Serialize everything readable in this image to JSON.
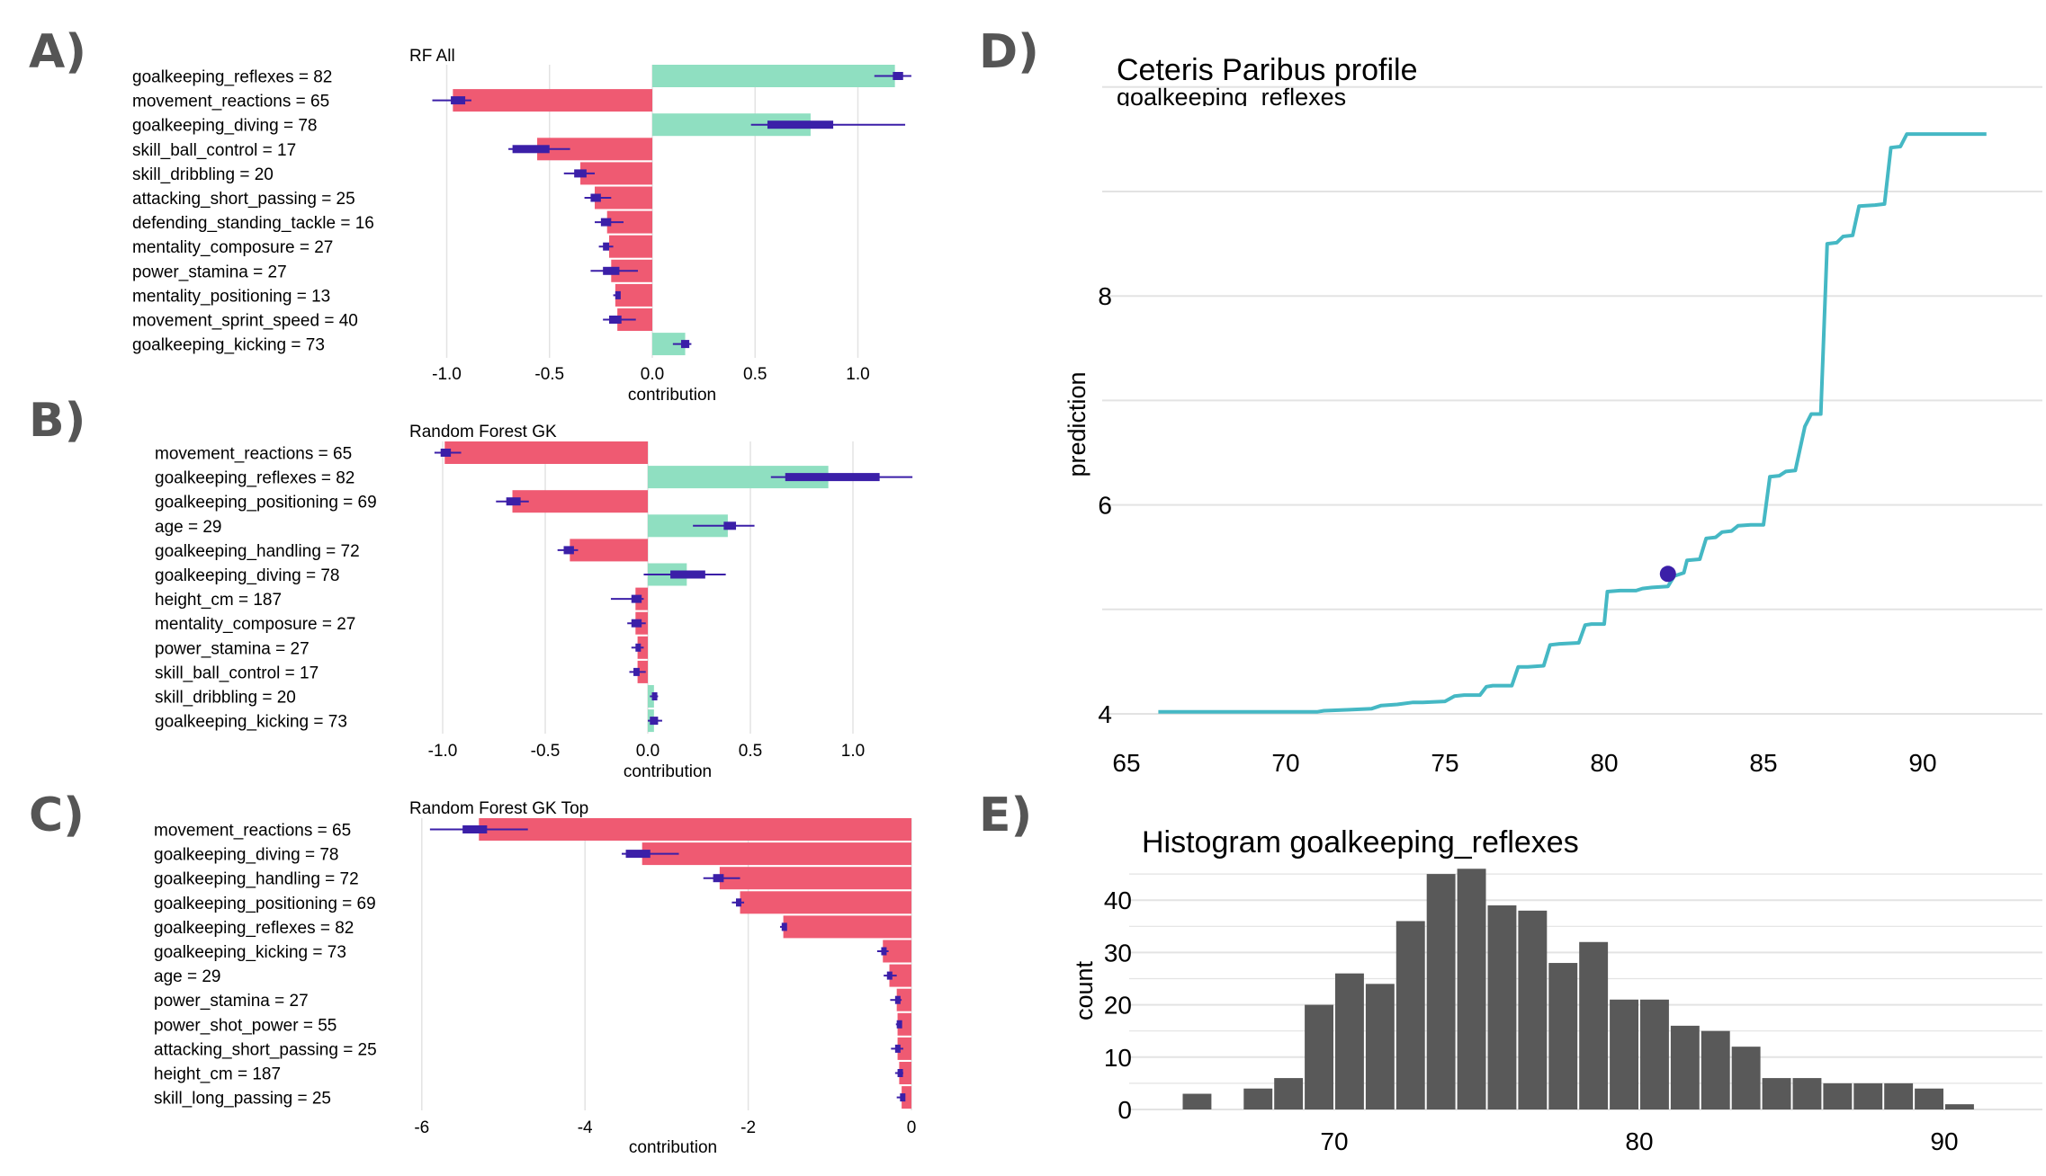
{
  "panel_letters": [
    "A)",
    "B)",
    "C)",
    "D)",
    "E)"
  ],
  "colors": {
    "positive": "#8fdfc1",
    "negative": "#ef5a72",
    "point": "#3b1fa8",
    "line": "#45b8c4",
    "hist": "#595959",
    "grid": "#e3e3e3"
  },
  "chart_data": [
    {
      "id": "A",
      "type": "bar",
      "title": "RF All",
      "xlabel": "contribution",
      "xlim": [
        -1.1,
        1.25
      ],
      "xticks": [
        -1.0,
        -0.5,
        0.0,
        0.5,
        1.0
      ],
      "xtick_labels": [
        "-1.0",
        "-0.5",
        "0.0",
        "0.5",
        "1.0"
      ],
      "features": [
        {
          "label": "goalkeeping_reflexes = 82",
          "value": 1.18,
          "q1": 1.17,
          "q3": 1.22,
          "lo": 1.08,
          "hi": 1.26
        },
        {
          "label": "movement_reactions = 65",
          "value": -0.97,
          "q1": -0.98,
          "q3": -0.91,
          "lo": -1.07,
          "hi": -0.88
        },
        {
          "label": "goalkeeping_diving = 78",
          "value": 0.77,
          "q1": 0.56,
          "q3": 0.88,
          "lo": 0.48,
          "hi": 1.23
        },
        {
          "label": "skill_ball_control = 17",
          "value": -0.56,
          "q1": -0.68,
          "q3": -0.5,
          "lo": -0.7,
          "hi": -0.4
        },
        {
          "label": "skill_dribbling = 20",
          "value": -0.35,
          "q1": -0.38,
          "q3": -0.32,
          "lo": -0.43,
          "hi": -0.28
        },
        {
          "label": "attacking_short_passing = 25",
          "value": -0.28,
          "q1": -0.3,
          "q3": -0.25,
          "lo": -0.33,
          "hi": -0.2
        },
        {
          "label": "defending_standing_tackle = 16",
          "value": -0.22,
          "q1": -0.25,
          "q3": -0.2,
          "lo": -0.28,
          "hi": -0.14
        },
        {
          "label": "mentality_composure = 27",
          "value": -0.21,
          "q1": -0.24,
          "q3": -0.21,
          "lo": -0.26,
          "hi": -0.19
        },
        {
          "label": "power_stamina = 27",
          "value": -0.2,
          "q1": -0.24,
          "q3": -0.16,
          "lo": -0.3,
          "hi": -0.07
        },
        {
          "label": "mentality_positioning = 13",
          "value": -0.18,
          "q1": -0.18,
          "q3": -0.17,
          "lo": -0.19,
          "hi": -0.16
        },
        {
          "label": "movement_sprint_speed = 40",
          "value": -0.17,
          "q1": -0.21,
          "q3": -0.15,
          "lo": -0.24,
          "hi": -0.08
        },
        {
          "label": "goalkeeping_kicking = 73",
          "value": 0.16,
          "q1": 0.14,
          "q3": 0.18,
          "lo": 0.1,
          "hi": 0.19
        }
      ]
    },
    {
      "id": "B",
      "type": "bar",
      "title": "Random Forest GK",
      "xlabel": "contribution",
      "xlim": [
        -1.1,
        1.28
      ],
      "xticks": [
        -1.0,
        -0.5,
        0.0,
        0.5,
        1.0
      ],
      "xtick_labels": [
        "-1.0",
        "-0.5",
        "0.0",
        "0.5",
        "1.0"
      ],
      "features": [
        {
          "label": "movement_reactions = 65",
          "value": -0.99,
          "q1": -1.01,
          "q3": -0.96,
          "lo": -1.04,
          "hi": -0.91
        },
        {
          "label": "goalkeeping_reflexes = 82",
          "value": 0.88,
          "q1": 0.67,
          "q3": 1.13,
          "lo": 0.6,
          "hi": 1.29
        },
        {
          "label": "goalkeeping_positioning = 69",
          "value": -0.66,
          "q1": -0.69,
          "q3": -0.62,
          "lo": -0.74,
          "hi": -0.58
        },
        {
          "label": "age = 29",
          "value": 0.39,
          "q1": 0.37,
          "q3": 0.43,
          "lo": 0.22,
          "hi": 0.52
        },
        {
          "label": "goalkeeping_handling = 72",
          "value": -0.38,
          "q1": -0.41,
          "q3": -0.36,
          "lo": -0.44,
          "hi": -0.34
        },
        {
          "label": "goalkeeping_diving = 78",
          "value": 0.19,
          "q1": 0.11,
          "q3": 0.28,
          "lo": -0.02,
          "hi": 0.38
        },
        {
          "label": "height_cm = 187",
          "value": -0.06,
          "q1": -0.08,
          "q3": -0.03,
          "lo": -0.18,
          "hi": -0.02
        },
        {
          "label": "mentality_composure = 27",
          "value": -0.06,
          "q1": -0.08,
          "q3": -0.03,
          "lo": -0.1,
          "hi": -0.01
        },
        {
          "label": "power_stamina = 27",
          "value": -0.05,
          "q1": -0.06,
          "q3": -0.04,
          "lo": -0.08,
          "hi": -0.02
        },
        {
          "label": "skill_ball_control = 17",
          "value": -0.05,
          "q1": -0.07,
          "q3": -0.04,
          "lo": -0.09,
          "hi": -0.01
        },
        {
          "label": "skill_dribbling = 20",
          "value": 0.03,
          "q1": 0.02,
          "q3": 0.04,
          "lo": 0.01,
          "hi": 0.05
        },
        {
          "label": "goalkeeping_kicking = 73",
          "value": 0.03,
          "q1": 0.01,
          "q3": 0.05,
          "lo": 0.0,
          "hi": 0.07
        }
      ]
    },
    {
      "id": "C",
      "type": "bar",
      "title": "Random Forest GK Top",
      "xlabel": "contribution",
      "xlim": [
        -6.0,
        0.0
      ],
      "xticks": [
        -6,
        -4,
        -2,
        0
      ],
      "xtick_labels": [
        "-6",
        "-4",
        "-2",
        "0"
      ],
      "features": [
        {
          "label": "movement_reactions = 65",
          "value": -5.3,
          "q1": -5.5,
          "q3": -5.2,
          "lo": -5.9,
          "hi": -4.7
        },
        {
          "label": "goalkeeping_diving = 78",
          "value": -3.3,
          "q1": -3.5,
          "q3": -3.2,
          "lo": -3.55,
          "hi": -2.85
        },
        {
          "label": "goalkeeping_handling = 72",
          "value": -2.35,
          "q1": -2.43,
          "q3": -2.3,
          "lo": -2.55,
          "hi": -2.1
        },
        {
          "label": "goalkeeping_positioning = 69",
          "value": -2.1,
          "q1": -2.15,
          "q3": -2.09,
          "lo": -2.2,
          "hi": -2.05
        },
        {
          "label": "goalkeeping_reflexes = 82",
          "value": -1.57,
          "q1": -1.59,
          "q3": -1.57,
          "lo": -1.61,
          "hi": -1.56
        },
        {
          "label": "goalkeeping_kicking = 73",
          "value": -0.35,
          "q1": -0.37,
          "q3": -0.32,
          "lo": -0.42,
          "hi": -0.28
        },
        {
          "label": "age = 29",
          "value": -0.27,
          "q1": -0.3,
          "q3": -0.24,
          "lo": -0.34,
          "hi": -0.18
        },
        {
          "label": "power_stamina = 27",
          "value": -0.18,
          "q1": -0.2,
          "q3": -0.16,
          "lo": -0.26,
          "hi": -0.12
        },
        {
          "label": "power_shot_power = 55",
          "value": -0.17,
          "q1": -0.18,
          "q3": -0.16,
          "lo": -0.19,
          "hi": -0.15
        },
        {
          "label": "attacking_short_passing = 25",
          "value": -0.17,
          "q1": -0.2,
          "q3": -0.15,
          "lo": -0.25,
          "hi": -0.1
        },
        {
          "label": "height_cm = 187",
          "value": -0.15,
          "q1": -0.17,
          "q3": -0.13,
          "lo": -0.2,
          "hi": -0.1
        },
        {
          "label": "skill_long_passing = 25",
          "value": -0.12,
          "q1": -0.14,
          "q3": -0.1,
          "lo": -0.18,
          "hi": -0.08
        }
      ]
    },
    {
      "id": "D",
      "type": "line",
      "title": "Ceteris Paribus profile",
      "subtitle": "goalkeeping_reflexes",
      "ylabel": "prediction",
      "xlim": [
        65,
        93.5
      ],
      "ylim": [
        3.8,
        10.2
      ],
      "xticks": [
        65,
        70,
        75,
        80,
        85,
        90
      ],
      "xtick_labels": [
        "65",
        "70",
        "75",
        "80",
        "85",
        "90"
      ],
      "yticks": [
        4,
        6,
        8
      ],
      "ytick_labels": [
        "4",
        "6",
        "8"
      ],
      "ygrid": [
        4,
        5,
        6,
        7,
        8,
        9,
        10
      ],
      "points": [
        [
          66,
          4.02
        ],
        [
          71,
          4.02
        ],
        [
          71.2,
          4.03
        ],
        [
          72,
          4.04
        ],
        [
          72.7,
          4.05
        ],
        [
          73,
          4.08
        ],
        [
          73.5,
          4.09
        ],
        [
          74,
          4.11
        ],
        [
          74.3,
          4.11
        ],
        [
          75,
          4.12
        ],
        [
          75.3,
          4.17
        ],
        [
          75.6,
          4.18
        ],
        [
          76.1,
          4.18
        ],
        [
          76.3,
          4.26
        ],
        [
          76.5,
          4.27
        ],
        [
          77.1,
          4.27
        ],
        [
          77.3,
          4.45
        ],
        [
          77.6,
          4.45
        ],
        [
          78.1,
          4.46
        ],
        [
          78.3,
          4.66
        ],
        [
          78.6,
          4.67
        ],
        [
          79.2,
          4.68
        ],
        [
          79.4,
          4.85
        ],
        [
          79.6,
          4.86
        ],
        [
          80,
          4.86
        ],
        [
          80.1,
          5.17
        ],
        [
          80.5,
          5.18
        ],
        [
          81,
          5.18
        ],
        [
          81.2,
          5.2
        ],
        [
          81.5,
          5.21
        ],
        [
          82,
          5.22
        ],
        [
          82.2,
          5.32
        ],
        [
          82.5,
          5.35
        ],
        [
          82.6,
          5.47
        ],
        [
          83,
          5.48
        ],
        [
          83.2,
          5.68
        ],
        [
          83.5,
          5.69
        ],
        [
          83.7,
          5.74
        ],
        [
          84,
          5.75
        ],
        [
          84.2,
          5.8
        ],
        [
          84.6,
          5.81
        ],
        [
          85,
          5.81
        ],
        [
          85.2,
          6.27
        ],
        [
          85.5,
          6.28
        ],
        [
          85.7,
          6.32
        ],
        [
          86,
          6.33
        ],
        [
          86.3,
          6.75
        ],
        [
          86.5,
          6.87
        ],
        [
          86.8,
          6.87
        ],
        [
          87,
          8.5
        ],
        [
          87.3,
          8.51
        ],
        [
          87.5,
          8.57
        ],
        [
          87.8,
          8.58
        ],
        [
          88,
          8.86
        ],
        [
          88.5,
          8.87
        ],
        [
          88.8,
          8.88
        ],
        [
          89,
          9.42
        ],
        [
          89.3,
          9.43
        ],
        [
          89.5,
          9.55
        ],
        [
          92,
          9.55
        ]
      ],
      "marker": {
        "x": 82,
        "y": 5.34
      }
    },
    {
      "id": "E",
      "type": "bar",
      "title": "Histogram goalkeeping_reflexes",
      "ylabel": "count",
      "xlim": [
        64.3,
        92.6
      ],
      "ylim": [
        0,
        47
      ],
      "xticks": [
        70,
        80,
        90
      ],
      "xtick_labels": [
        "70",
        "80",
        "90"
      ],
      "yticks": [
        0,
        10,
        20,
        30,
        40
      ],
      "ytick_labels": [
        "0",
        "10",
        "20",
        "30",
        "40"
      ],
      "bin_width": 1,
      "bins": [
        {
          "left": 65,
          "count": 3
        },
        {
          "left": 66,
          "count": 0
        },
        {
          "left": 67,
          "count": 4
        },
        {
          "left": 68,
          "count": 6
        },
        {
          "left": 69,
          "count": 20
        },
        {
          "left": 70,
          "count": 26
        },
        {
          "left": 71,
          "count": 24
        },
        {
          "left": 72,
          "count": 36
        },
        {
          "left": 73,
          "count": 45
        },
        {
          "left": 74,
          "count": 46
        },
        {
          "left": 75,
          "count": 39
        },
        {
          "left": 76,
          "count": 38
        },
        {
          "left": 77,
          "count": 28
        },
        {
          "left": 78,
          "count": 32
        },
        {
          "left": 79,
          "count": 21
        },
        {
          "left": 80,
          "count": 21
        },
        {
          "left": 81,
          "count": 16
        },
        {
          "left": 82,
          "count": 15
        },
        {
          "left": 83,
          "count": 12
        },
        {
          "left": 84,
          "count": 6
        },
        {
          "left": 85,
          "count": 6
        },
        {
          "left": 86,
          "count": 5
        },
        {
          "left": 87,
          "count": 5
        },
        {
          "left": 88,
          "count": 5
        },
        {
          "left": 89,
          "count": 4
        },
        {
          "left": 90,
          "count": 1
        }
      ]
    }
  ]
}
